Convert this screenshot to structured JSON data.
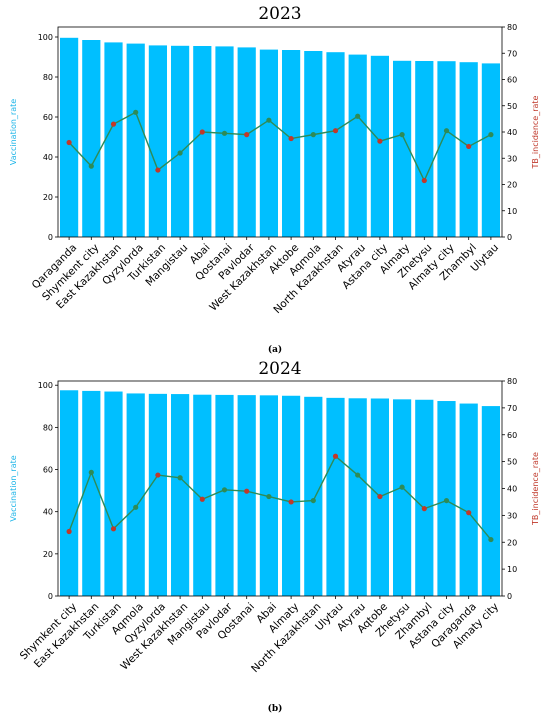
{
  "chart_data": [
    {
      "type": "bar",
      "title": "2023",
      "panel_label": "(a)",
      "ylabel": "Vaccination_rate",
      "y2label": "TB_incidence_rate",
      "ylim": [
        0,
        105
      ],
      "y2lim": [
        0,
        80
      ],
      "yticks": [
        0,
        20,
        40,
        60,
        80,
        100
      ],
      "y2ticks": [
        0,
        10,
        20,
        30,
        40,
        50,
        60,
        70,
        80
      ],
      "categories": [
        "Qaraganda",
        "Shymkent city",
        "East Kazakhstan",
        "Qyzylorda",
        "Turkistan",
        "Mangistau",
        "Abai",
        "Qostanai",
        "Pavlodar",
        "West Kazakhstan",
        "Aktobe",
        "Aqmola",
        "North Kazakhstan",
        "Atyrau",
        "Astana city",
        "Almaty",
        "Zhetysu",
        "Almaty city",
        "Zhambyl",
        "Ulytau"
      ],
      "series": [
        {
          "type": "bar",
          "axis": "left",
          "color": "#00bfff",
          "values": [
            99.6,
            98.5,
            97.3,
            96.7,
            95.8,
            95.6,
            95.5,
            95.3,
            94.8,
            93.7,
            93.5,
            93.0,
            92.4,
            91.2,
            90.6,
            88.1,
            88.0,
            87.9,
            87.4,
            86.8
          ]
        },
        {
          "type": "line",
          "axis": "right",
          "color": "#2e8b57",
          "marker_colors": [
            "#c0392b",
            "#2e8b57"
          ],
          "values": [
            36.0,
            27.0,
            43.0,
            47.5,
            25.5,
            32.0,
            40.0,
            39.5,
            39.0,
            44.5,
            37.5,
            39.0,
            40.5,
            46.0,
            36.5,
            39.0,
            21.5,
            40.5,
            34.5,
            39.0
          ]
        }
      ]
    },
    {
      "type": "bar",
      "title": "2024",
      "panel_label": "(b)",
      "ylabel": "Vaccination_rate",
      "y2label": "TB_incidence_rate",
      "ylim": [
        0,
        102
      ],
      "y2lim": [
        0,
        80
      ],
      "yticks": [
        0,
        20,
        40,
        60,
        80,
        100
      ],
      "y2ticks": [
        0,
        10,
        20,
        30,
        40,
        50,
        60,
        70,
        80
      ],
      "categories": [
        "Shymkent city",
        "East Kazakhstan",
        "Turkistan",
        "Aqmola",
        "Qyzylorda",
        "West Kazakhstan",
        "Mangistau",
        "Pavlodar",
        "Qostanai",
        "Abai",
        "Almaty",
        "North Kazakhstan",
        "Ulytau",
        "Atyrau",
        "Aqtobe",
        "Zhetysu",
        "Zhambyl",
        "Astana city",
        "Qaraganda",
        "Almaty city"
      ],
      "series": [
        {
          "type": "bar",
          "axis": "left",
          "color": "#00bfff",
          "values": [
            97.6,
            97.3,
            97.0,
            96.1,
            95.9,
            95.8,
            95.5,
            95.4,
            95.3,
            95.2,
            95.0,
            94.5,
            94.0,
            93.8,
            93.7,
            93.3,
            93.1,
            92.5,
            91.3,
            90.1
          ]
        },
        {
          "type": "line",
          "axis": "right",
          "color": "#2e8b57",
          "marker_colors": [
            "#c0392b",
            "#2e8b57"
          ],
          "values": [
            24.0,
            46.0,
            25.0,
            33.0,
            45.0,
            44.0,
            36.0,
            39.5,
            39.0,
            37.0,
            35.0,
            35.5,
            52.0,
            45.0,
            37.0,
            40.5,
            32.5,
            35.5,
            31.0,
            21.0
          ]
        }
      ]
    }
  ]
}
